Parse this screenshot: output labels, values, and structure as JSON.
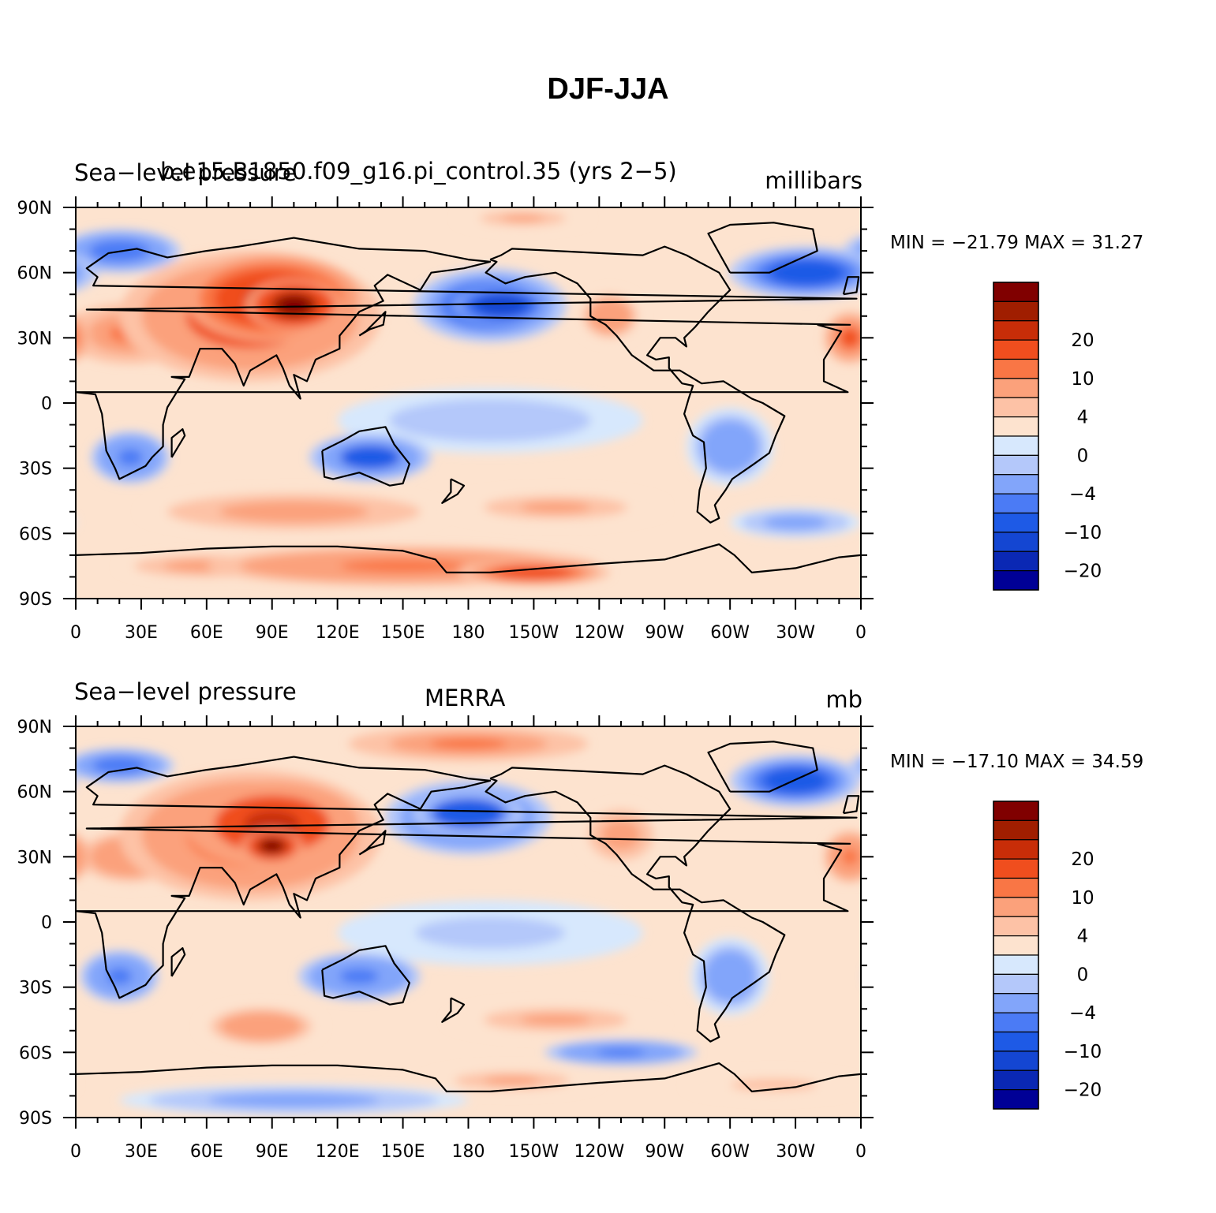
{
  "title": "DJF-JJA",
  "chart_data": [
    {
      "type": "heatmap",
      "left_label": "Sea−level pressure",
      "center_label": "b.e15.B1850.f09_g16.pi_control.35 (yrs 2−5)",
      "right_label": "millibars",
      "min_max_text": "MIN = −21.79 MAX =   31.27",
      "x_ticks": [
        "0",
        "30E",
        "60E",
        "90E",
        "120E",
        "150E",
        "180",
        "150W",
        "120W",
        "90W",
        "60W",
        "30W",
        "0"
      ],
      "y_ticks": [
        "90N",
        "60N",
        "30N",
        "0",
        "30S",
        "60S",
        "90S"
      ],
      "xlim": [
        0,
        360
      ],
      "ylim": [
        -90,
        90
      ],
      "colorbar_labels": [
        "20",
        "10",
        "4",
        "0",
        "−4",
        "−10",
        "−20"
      ],
      "features": [
        {
          "lon": 100,
          "lat": 45,
          "v": 24,
          "rx": 22,
          "ry": 12
        },
        {
          "lon": 90,
          "lat": 48,
          "v": 18,
          "rx": 40,
          "ry": 20
        },
        {
          "lon": 80,
          "lat": 40,
          "v": 12,
          "rx": 60,
          "ry": 30
        },
        {
          "lon": 25,
          "lat": 32,
          "v": 8,
          "rx": 30,
          "ry": 14
        },
        {
          "lon": 195,
          "lat": 45,
          "v": -20,
          "rx": 22,
          "ry": 9
        },
        {
          "lon": 190,
          "lat": 45,
          "v": -14,
          "rx": 35,
          "ry": 17
        },
        {
          "lon": 245,
          "lat": 40,
          "v": 7,
          "rx": 15,
          "ry": 12
        },
        {
          "lon": 335,
          "lat": 60,
          "v": -13,
          "rx": 35,
          "ry": 12
        },
        {
          "lon": 20,
          "lat": 70,
          "v": -10,
          "rx": 28,
          "ry": 10
        },
        {
          "lon": 355,
          "lat": 30,
          "v": 10,
          "rx": 12,
          "ry": 12
        },
        {
          "lon": 205,
          "lat": 85,
          "v": 4,
          "rx": 30,
          "ry": 5
        },
        {
          "lon": 25,
          "lat": -25,
          "v": -9,
          "rx": 18,
          "ry": 12
        },
        {
          "lon": 135,
          "lat": -25,
          "v": -12,
          "rx": 28,
          "ry": 11
        },
        {
          "lon": 300,
          "lat": -20,
          "v": -8,
          "rx": 20,
          "ry": 18
        },
        {
          "lon": 190,
          "lat": -8,
          "v": -4,
          "rx": 70,
          "ry": 15
        },
        {
          "lon": 100,
          "lat": -50,
          "v": 5,
          "rx": 70,
          "ry": 10
        },
        {
          "lon": 220,
          "lat": -48,
          "v": 4,
          "rx": 50,
          "ry": 8
        },
        {
          "lon": 150,
          "lat": -75,
          "v": 9,
          "rx": 90,
          "ry": 9
        },
        {
          "lon": 210,
          "lat": -78,
          "v": 13,
          "rx": 35,
          "ry": 6
        },
        {
          "lon": 60,
          "lat": -75,
          "v": 6,
          "rx": 40,
          "ry": 6
        },
        {
          "lon": 330,
          "lat": -55,
          "v": -5,
          "rx": 30,
          "ry": 7
        }
      ]
    },
    {
      "type": "heatmap",
      "left_label": "Sea−level pressure",
      "center_label": "MERRA",
      "right_label": "mb",
      "min_max_text": "MIN = −17.10 MAX =   34.59",
      "x_ticks": [
        "0",
        "30E",
        "60E",
        "90E",
        "120E",
        "150E",
        "180",
        "150W",
        "120W",
        "90W",
        "60W",
        "30W",
        "0"
      ],
      "y_ticks": [
        "90N",
        "60N",
        "30N",
        "0",
        "30S",
        "60S",
        "90S"
      ],
      "xlim": [
        0,
        360
      ],
      "ylim": [
        -90,
        90
      ],
      "colorbar_labels": [
        "20",
        "10",
        "4",
        "0",
        "−4",
        "−10",
        "−20"
      ],
      "features": [
        {
          "lon": 90,
          "lat": 35,
          "v": 24,
          "rx": 14,
          "ry": 8
        },
        {
          "lon": 90,
          "lat": 45,
          "v": 16,
          "rx": 40,
          "ry": 20
        },
        {
          "lon": 80,
          "lat": 40,
          "v": 11,
          "rx": 60,
          "ry": 30
        },
        {
          "lon": 25,
          "lat": 30,
          "v": 7,
          "rx": 28,
          "ry": 14
        },
        {
          "lon": 180,
          "lat": 82,
          "v": 8,
          "rx": 55,
          "ry": 8
        },
        {
          "lon": 180,
          "lat": 50,
          "v": -16,
          "rx": 25,
          "ry": 10
        },
        {
          "lon": 180,
          "lat": 48,
          "v": -11,
          "rx": 38,
          "ry": 17
        },
        {
          "lon": 250,
          "lat": 40,
          "v": 6,
          "rx": 18,
          "ry": 14
        },
        {
          "lon": 330,
          "lat": 65,
          "v": -13,
          "rx": 30,
          "ry": 12
        },
        {
          "lon": 20,
          "lat": 72,
          "v": -10,
          "rx": 25,
          "ry": 8
        },
        {
          "lon": 355,
          "lat": 30,
          "v": 9,
          "rx": 12,
          "ry": 12
        },
        {
          "lon": 20,
          "lat": -25,
          "v": -9,
          "rx": 18,
          "ry": 12
        },
        {
          "lon": 130,
          "lat": -25,
          "v": -9,
          "rx": 28,
          "ry": 11
        },
        {
          "lon": 300,
          "lat": -25,
          "v": -8,
          "rx": 18,
          "ry": 18
        },
        {
          "lon": 190,
          "lat": -5,
          "v": -3,
          "rx": 70,
          "ry": 15
        },
        {
          "lon": 85,
          "lat": -48,
          "v": 7,
          "rx": 28,
          "ry": 10
        },
        {
          "lon": 220,
          "lat": -45,
          "v": 4,
          "rx": 50,
          "ry": 8
        },
        {
          "lon": 250,
          "lat": -60,
          "v": -9,
          "rx": 35,
          "ry": 6
        },
        {
          "lon": 100,
          "lat": -82,
          "v": -6,
          "rx": 80,
          "ry": 7
        },
        {
          "lon": 200,
          "lat": -73,
          "v": 4,
          "rx": 40,
          "ry": 6
        },
        {
          "lon": 320,
          "lat": -75,
          "v": 3,
          "rx": 40,
          "ry": 6
        }
      ]
    }
  ]
}
